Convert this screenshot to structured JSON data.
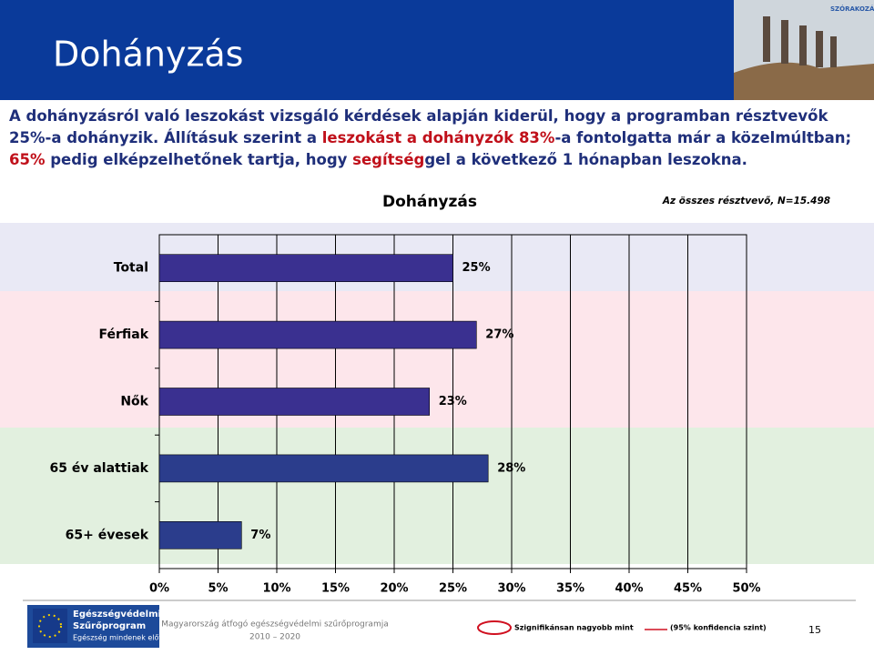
{
  "slide": {
    "title": "Dohányzás",
    "photo_label": "SZÓRAKOZÁS?",
    "intro": [
      {
        "text": "A dohányzásról való leszokást vizsgáló kérdések alapján kiderül, hogy a programban résztvevők 25%-a dohányzik. Állításuk szerint a ",
        "color": "#1f2f7a"
      },
      {
        "text": "leszokást a dohányzók 83%",
        "color": "#c0101a"
      },
      {
        "text": "-a fontolgatta már a közelmúltban; ",
        "color": "#1f2f7a"
      },
      {
        "text": "65%",
        "color": "#c0101a"
      },
      {
        "text": " pedig elképzelhetőnek tartja, hogy ",
        "color": "#1f2f7a"
      },
      {
        "text": "segítség",
        "color": "#c0101a"
      },
      {
        "text": "gel a következő 1 hónapban leszokna.",
        "color": "#1f2f7a"
      }
    ],
    "footer": {
      "logo_lines": [
        "Egészségvédelmi",
        "Szűrőprogram",
        "Egészség mindenek előtt..."
      ],
      "program": "Magyarország átfogó egészségvédelmi szűrőprogramja",
      "years": "2010 – 2020",
      "legend_text": "Szignifikánsan nagyobb mint",
      "legend_note": "(95% konfidencia szint)",
      "page_number": "15"
    }
  },
  "chart_data": {
    "type": "bar",
    "orientation": "horizontal",
    "title": "Dohányzás",
    "note": "Az összes résztvevő, N=15.498",
    "categories": [
      "Total",
      "Férfiak",
      "Nők",
      "65 év alattiak",
      "65+ évesek"
    ],
    "values": [
      25,
      27,
      23,
      28,
      7
    ],
    "value_labels": [
      "25%",
      "27%",
      "23%",
      "28%",
      "7%"
    ],
    "colors": [
      "#3a3090",
      "#3a3090",
      "#3a3090",
      "#2b3d8c",
      "#2b3d8c"
    ],
    "xlim": [
      0,
      50
    ],
    "xticks": [
      {
        "value": 0,
        "label": "0%"
      },
      {
        "value": 5,
        "label": "5%"
      },
      {
        "value": 10,
        "label": "10%"
      },
      {
        "value": 15,
        "label": "15%"
      },
      {
        "value": 20,
        "label": "20%"
      },
      {
        "value": 25,
        "label": "25%"
      },
      {
        "value": 30,
        "label": "30%"
      },
      {
        "value": 35,
        "label": "35%"
      },
      {
        "value": 40,
        "label": "40%"
      },
      {
        "value": 45,
        "label": "45%"
      },
      {
        "value": 50,
        "label": "50%"
      }
    ],
    "grid": true
  }
}
